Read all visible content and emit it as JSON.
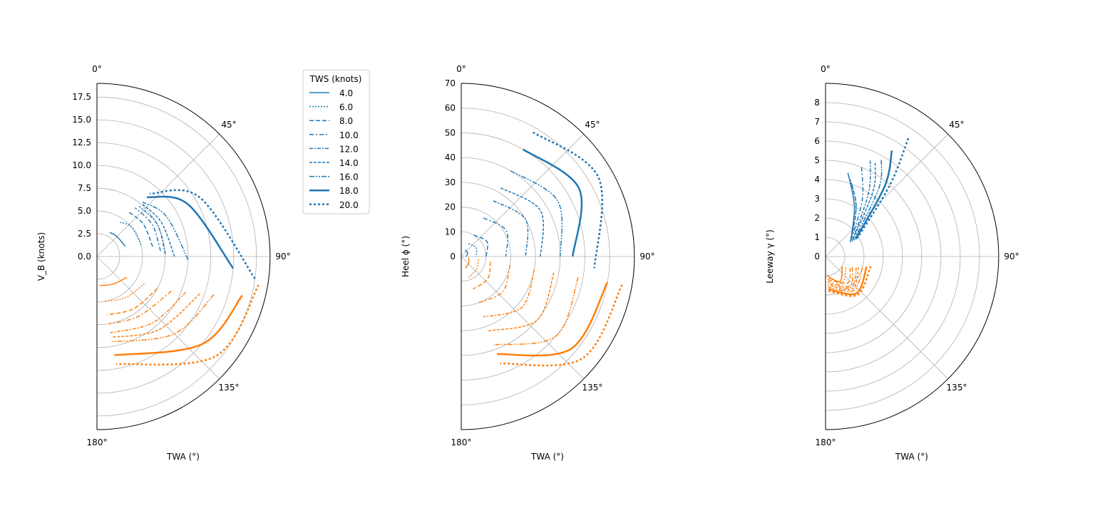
{
  "chart_data": [
    {
      "type": "line",
      "projection": "polar half-plane, theta zero at top, clockwise, 0–180°",
      "ylabel": "V_B (knots)",
      "xlabel": "TWA (°)",
      "theta_tick_labels": [
        "0°",
        "45°",
        "90°",
        "135°",
        "180°"
      ],
      "r_tick_labels": [
        "0.0",
        "2.5",
        "5.0",
        "7.5",
        "10.0",
        "12.5",
        "15.0",
        "17.5"
      ],
      "rlim": [
        0,
        19
      ],
      "grid": true,
      "legend": {
        "title": "TWS (knots)",
        "placement": "upper right, outside axes",
        "entries": [
          "4.0",
          "6.0",
          "8.0",
          "10.0",
          "12.0",
          "14.0",
          "16.0",
          "18.0",
          "20.0"
        ]
      },
      "series": [
        {
          "name": "4.0",
          "upwind": [
            [
              70,
              3.3
            ],
            [
              45,
              3.1
            ],
            [
              28,
              3.0
            ]
          ],
          "downwind": [
            [
              125,
              4.0
            ],
            [
              150,
              3.5
            ],
            [
              175,
              3.2
            ]
          ]
        },
        {
          "name": "6.0",
          "upwind": [
            [
              75,
              5.0
            ],
            [
              50,
              5.0
            ],
            [
              32,
              4.5
            ]
          ],
          "downwind": [
            [
              120,
              6.0
            ],
            [
              145,
              5.5
            ],
            [
              170,
              5.0
            ]
          ]
        },
        {
          "name": "8.0",
          "upwind": [
            [
              80,
              6.2
            ],
            [
              55,
              6.2
            ],
            [
              35,
              6.0
            ]
          ],
          "downwind": [
            [
              118,
              7.5
            ],
            [
              145,
              7.0
            ],
            [
              170,
              6.5
            ]
          ]
        },
        {
          "name": "10.0",
          "upwind": [
            [
              85,
              7.0
            ],
            [
              60,
              7.0
            ],
            [
              38,
              6.8
            ]
          ],
          "downwind": [
            [
              115,
              9.0
            ],
            [
              145,
              8.0
            ],
            [
              170,
              7.5
            ]
          ]
        },
        {
          "name": "12.0",
          "upwind": [
            [
              88,
              7.5
            ],
            [
              62,
              7.5
            ],
            [
              40,
              7.2
            ]
          ],
          "downwind": [
            [
              112,
              10.5
            ],
            [
              140,
              9.5
            ],
            [
              170,
              8.5
            ]
          ]
        },
        {
          "name": "14.0",
          "upwind": [
            [
              90,
              8.5
            ],
            [
              62,
              8.0
            ],
            [
              40,
              7.6
            ]
          ],
          "downwind": [
            [
              110,
              12.0
            ],
            [
              140,
              10.5
            ],
            [
              170,
              9.0
            ]
          ]
        },
        {
          "name": "16.0",
          "upwind": [
            [
              92,
              10.0
            ],
            [
              60,
              8.8
            ],
            [
              40,
              7.8
            ]
          ],
          "downwind": [
            [
              108,
              13.5
            ],
            [
              135,
              12.0
            ],
            [
              170,
              9.5
            ]
          ]
        },
        {
          "name": "18.0",
          "upwind": [
            [
              95,
              15.0
            ],
            [
              60,
              11.5
            ],
            [
              40,
              8.5
            ]
          ],
          "downwind": [
            [
              105,
              16.5
            ],
            [
              130,
              15.0
            ],
            [
              170,
              11.0
            ]
          ]
        },
        {
          "name": "20.0",
          "upwind": [
            [
              98,
              17.5
            ],
            [
              60,
              13.0
            ],
            [
              40,
              9.0
            ]
          ],
          "downwind": [
            [
              100,
              18.0
            ],
            [
              130,
              17.0
            ],
            [
              170,
              12.0
            ]
          ]
        }
      ]
    },
    {
      "type": "line",
      "projection": "polar half-plane, theta zero at top, clockwise, 0–180°",
      "ylabel": "Heel ϕ (°)",
      "xlabel": "TWA (°)",
      "theta_tick_labels": [
        "0°",
        "45°",
        "90°",
        "135°",
        "180°"
      ],
      "r_tick_labels": [
        "0",
        "10",
        "20",
        "30",
        "40",
        "50",
        "60",
        "70"
      ],
      "rlim": [
        0,
        70
      ],
      "grid": true,
      "series": [
        {
          "name": "4.0",
          "upwind": [
            [
              30,
              3
            ],
            [
              60,
              3
            ],
            [
              90,
              2
            ]
          ],
          "downwind": [
            [
              100,
              3
            ],
            [
              130,
              4
            ],
            [
              160,
              5
            ]
          ]
        },
        {
          "name": "6.0",
          "upwind": [
            [
              30,
              6
            ],
            [
              60,
              7
            ],
            [
              90,
              6
            ]
          ],
          "downwind": [
            [
              100,
              7
            ],
            [
              130,
              8
            ],
            [
              160,
              9
            ]
          ]
        },
        {
          "name": "8.0",
          "upwind": [
            [
              30,
              10
            ],
            [
              60,
              12
            ],
            [
              90,
              10
            ]
          ],
          "downwind": [
            [
              100,
              12
            ],
            [
              130,
              14
            ],
            [
              160,
              14
            ]
          ]
        },
        {
          "name": "10.0",
          "upwind": [
            [
              30,
              18
            ],
            [
              60,
              21
            ],
            [
              90,
              18
            ]
          ],
          "downwind": [
            [
              100,
              20
            ],
            [
              130,
              22
            ],
            [
              160,
              20
            ]
          ]
        },
        {
          "name": "12.0",
          "upwind": [
            [
              30,
              26
            ],
            [
              60,
              30
            ],
            [
              90,
              26
            ]
          ],
          "downwind": [
            [
              100,
              30
            ],
            [
              130,
              32
            ],
            [
              160,
              26
            ]
          ]
        },
        {
          "name": "14.0",
          "upwind": [
            [
              30,
              32
            ],
            [
              60,
              37
            ],
            [
              90,
              32
            ]
          ],
          "downwind": [
            [
              100,
              38
            ],
            [
              130,
              40
            ],
            [
              160,
              32
            ]
          ]
        },
        {
          "name": "16.0",
          "upwind": [
            [
              30,
              40
            ],
            [
              60,
              45
            ],
            [
              90,
              40
            ]
          ],
          "downwind": [
            [
              100,
              48
            ],
            [
              130,
              50
            ],
            [
              160,
              38
            ]
          ]
        },
        {
          "name": "18.0",
          "upwind": [
            [
              30,
              50
            ],
            [
              60,
              55
            ],
            [
              90,
              45
            ]
          ],
          "downwind": [
            [
              100,
              60
            ],
            [
              130,
              58
            ],
            [
              160,
              42
            ]
          ]
        },
        {
          "name": "20.0",
          "upwind": [
            [
              30,
              58
            ],
            [
              60,
              64
            ],
            [
              95,
              54
            ]
          ],
          "downwind": [
            [
              100,
              66
            ],
            [
              130,
              64
            ],
            [
              160,
              46
            ]
          ]
        }
      ]
    },
    {
      "type": "line",
      "projection": "polar half-plane, theta zero at top, clockwise, 0–180°",
      "ylabel": "Leeway γ (°)",
      "xlabel": "TWA (°)",
      "theta_tick_labels": [
        "0°",
        "45°",
        "90°",
        "135°",
        "180°"
      ],
      "r_tick_labels": [
        "0",
        "1",
        "2",
        "3",
        "4",
        "5",
        "6",
        "7",
        "8"
      ],
      "rlim": [
        0,
        9
      ],
      "grid": true,
      "series": [
        {
          "name": "4.0",
          "upwind": [
            [
              15,
              4.5
            ],
            [
              30,
              3.0
            ],
            [
              60,
              1.5
            ]
          ],
          "downwind": [
            [
              120,
              1.0
            ],
            [
              150,
              1.5
            ],
            [
              175,
              1.0
            ]
          ]
        },
        {
          "name": "6.0",
          "upwind": [
            [
              18,
              4.2
            ],
            [
              32,
              3.0
            ],
            [
              60,
              1.5
            ]
          ],
          "downwind": [
            [
              118,
              1.2
            ],
            [
              145,
              1.6
            ],
            [
              175,
              1.1
            ]
          ]
        },
        {
          "name": "8.0",
          "upwind": [
            [
              20,
              4.0
            ],
            [
              32,
              3.0
            ],
            [
              60,
              1.5
            ]
          ],
          "downwind": [
            [
              115,
              1.4
            ],
            [
              140,
              1.8
            ],
            [
              175,
              1.2
            ]
          ]
        },
        {
          "name": "10.0",
          "upwind": [
            [
              22,
              5.0
            ],
            [
              33,
              3.5
            ],
            [
              60,
              1.5
            ]
          ],
          "downwind": [
            [
              112,
              1.5
            ],
            [
              140,
              2.0
            ],
            [
              175,
              1.3
            ]
          ]
        },
        {
          "name": "12.0",
          "upwind": [
            [
              25,
              5.5
            ],
            [
              34,
              4.0
            ],
            [
              60,
              1.6
            ]
          ],
          "downwind": [
            [
              110,
              1.7
            ],
            [
              140,
              2.1
            ],
            [
              175,
              1.4
            ]
          ]
        },
        {
          "name": "14.0",
          "upwind": [
            [
              28,
              5.5
            ],
            [
              36,
              4.2
            ],
            [
              60,
              1.6
            ]
          ],
          "downwind": [
            [
              108,
              1.8
            ],
            [
              140,
              2.2
            ],
            [
              175,
              1.5
            ]
          ]
        },
        {
          "name": "16.0",
          "upwind": [
            [
              30,
              5.8
            ],
            [
              38,
              4.5
            ],
            [
              60,
              1.7
            ]
          ],
          "downwind": [
            [
              106,
              2.0
            ],
            [
              140,
              2.3
            ],
            [
              175,
              1.6
            ]
          ]
        },
        {
          "name": "18.0",
          "upwind": [
            [
              32,
              6.5
            ],
            [
              40,
              4.8
            ],
            [
              60,
              1.8
            ]
          ],
          "downwind": [
            [
              104,
              2.2
            ],
            [
              140,
              2.5
            ],
            [
              175,
              1.7
            ]
          ]
        },
        {
          "name": "20.0",
          "upwind": [
            [
              35,
              7.5
            ],
            [
              42,
              5.0
            ],
            [
              60,
              1.9
            ]
          ],
          "downwind": [
            [
              102,
              2.4
            ],
            [
              140,
              2.6
            ],
            [
              175,
              1.8
            ]
          ]
        }
      ]
    }
  ],
  "colors": {
    "upwind": "#1f77b4",
    "downwind": "#ff7f0e",
    "grid": "#b0b0b0",
    "spine": "#000000"
  },
  "linestyles": [
    "solid",
    "dotted",
    "dashed",
    "dashdot",
    "dashdotdot",
    "dense-dash",
    "dashdotdotdot",
    "thick-solid",
    "thick-dotted"
  ]
}
